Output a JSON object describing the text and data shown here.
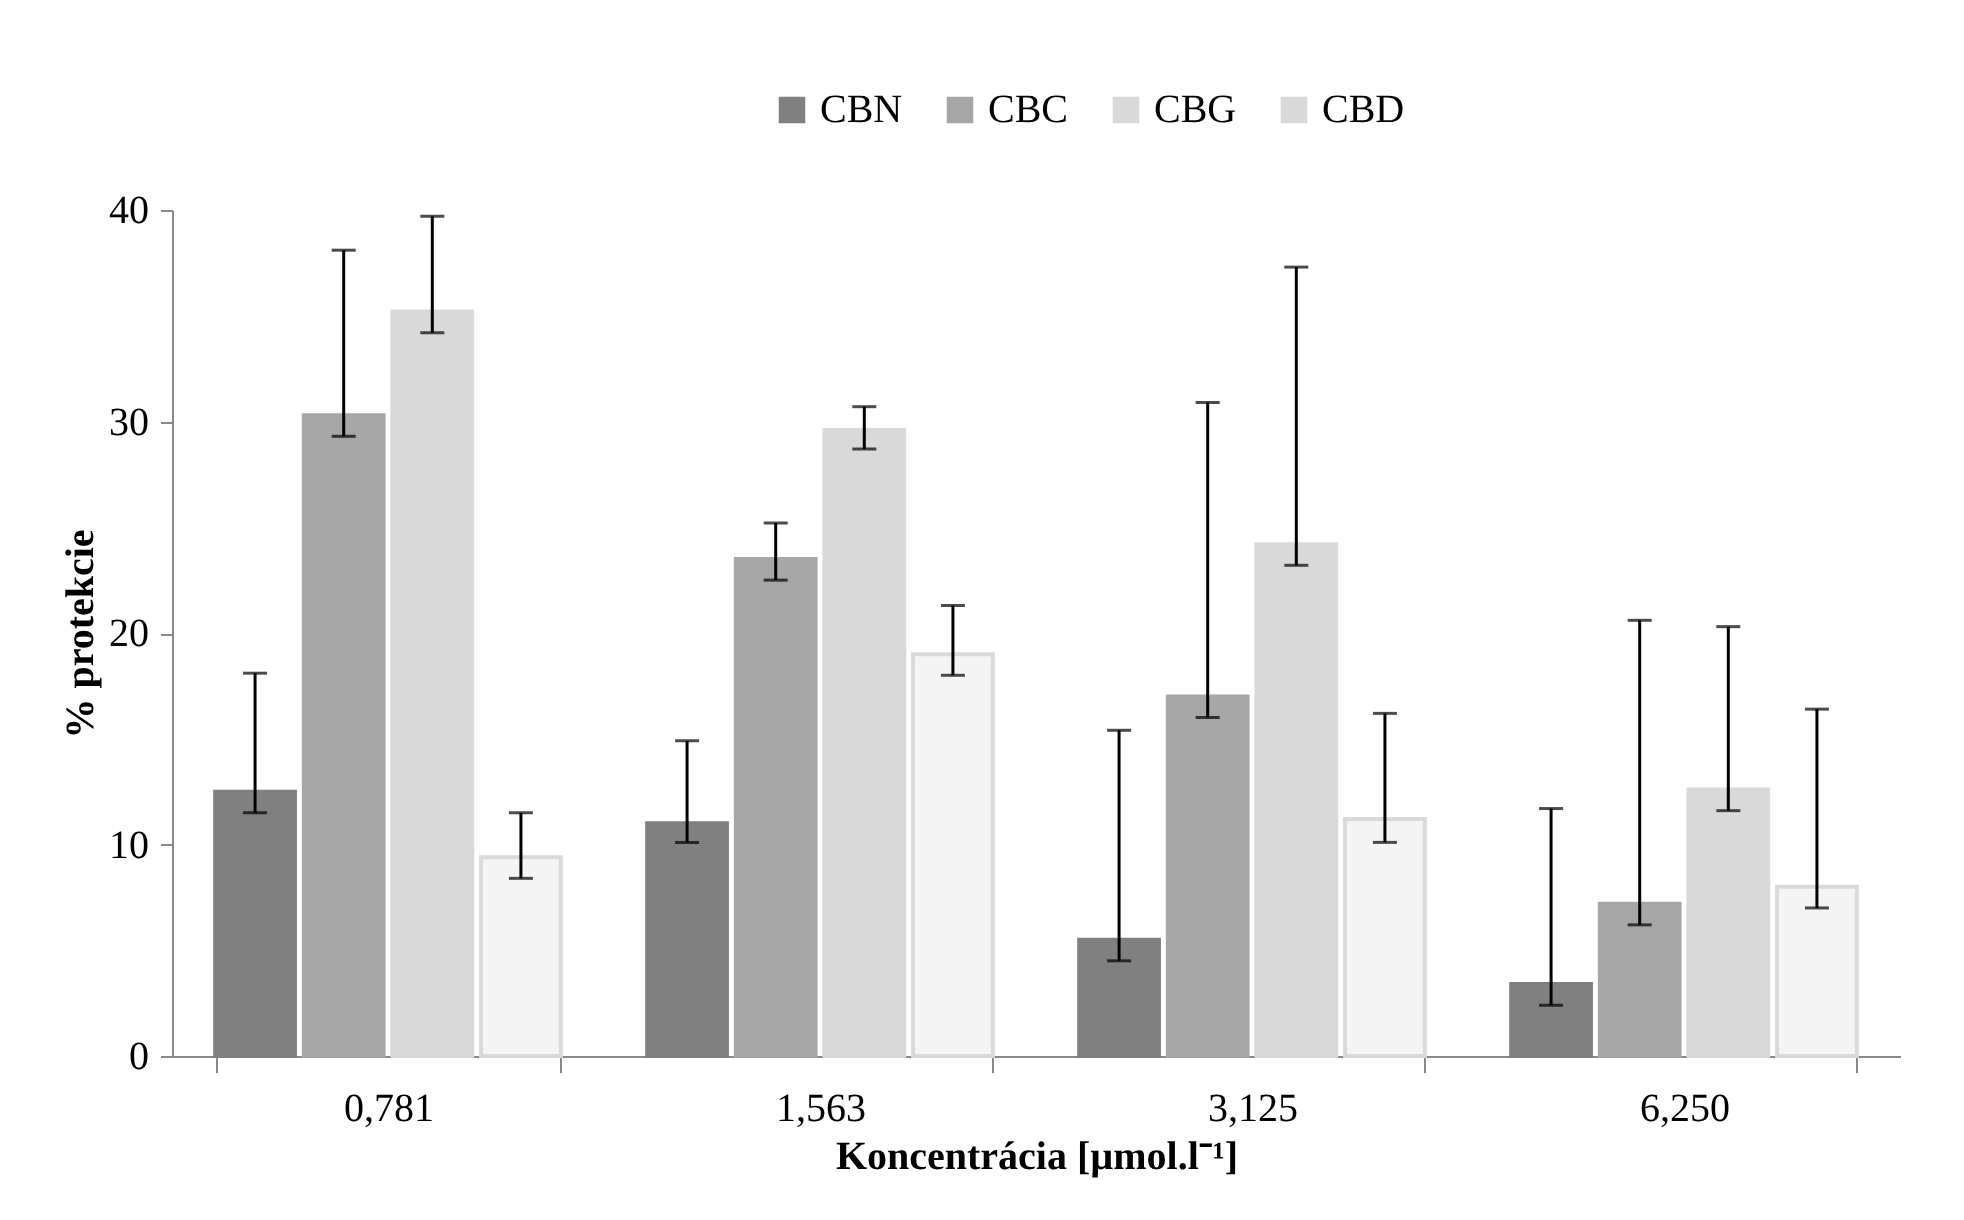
{
  "chart_data": {
    "type": "bar",
    "xlabel": "Koncentrácia [µmol.l⁻¹]",
    "ylabel": "% protekcie",
    "categories": [
      "0,781",
      "1,563",
      "3,125",
      "6,250"
    ],
    "series": [
      {
        "name": "CBN",
        "color": "#808080",
        "values": [
          12.5,
          11.0,
          5.5,
          3.4
        ],
        "errors": [
          [
            11.5,
            18.1
          ],
          [
            10.1,
            14.9
          ],
          [
            4.5,
            15.4
          ],
          [
            2.4,
            11.7
          ]
        ]
      },
      {
        "name": "CBC",
        "color": "#a6a6a6",
        "values": [
          30.3,
          23.5,
          17.0,
          7.2
        ],
        "errors": [
          [
            29.3,
            38.1
          ],
          [
            22.5,
            25.2
          ],
          [
            16.0,
            30.9
          ],
          [
            6.2,
            20.6
          ]
        ]
      },
      {
        "name": "CBG",
        "color": "#d9d9d9",
        "values": [
          35.2,
          29.6,
          24.2,
          12.6
        ],
        "errors": [
          [
            34.2,
            39.7
          ],
          [
            28.7,
            30.7
          ],
          [
            23.2,
            37.3
          ],
          [
            11.6,
            20.3
          ]
        ]
      },
      {
        "name": "CBD",
        "color": "#d9d9d9",
        "values": [
          9.4,
          19.0,
          11.2,
          8.0
        ],
        "errors": [
          [
            8.4,
            11.5
          ],
          [
            18.0,
            21.3
          ],
          [
            10.1,
            16.2
          ],
          [
            7.0,
            16.4
          ]
        ]
      }
    ],
    "ylim": [
      0,
      40
    ],
    "yticks": [
      0,
      10,
      20,
      30,
      40
    ],
    "grid": false,
    "legend": "top"
  }
}
